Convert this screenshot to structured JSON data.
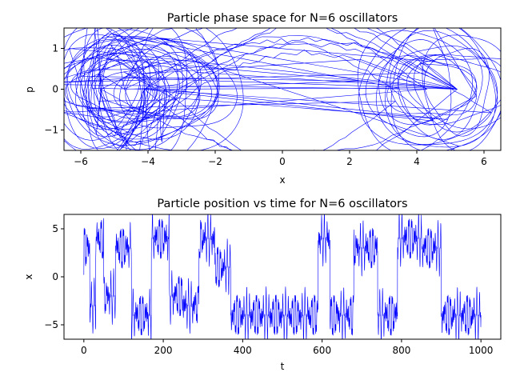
{
  "chart_data": [
    {
      "type": "line",
      "title": "Particle phase space for N=6 oscillators",
      "xlabel": "x",
      "ylabel": "p",
      "xlim": [
        -6.5,
        6.5
      ],
      "ylim": [
        -1.5,
        1.5
      ],
      "xticks": [
        -6,
        -4,
        -2,
        0,
        2,
        4,
        6
      ],
      "yticks": [
        -1,
        0,
        1
      ],
      "xtick_labels": [
        "−6",
        "−4",
        "−2",
        "0",
        "2",
        "4",
        "6"
      ],
      "ytick_labels": [
        "−1",
        "0",
        "1"
      ],
      "grid": false,
      "line_color": "#0000ff",
      "loop_centers_x": [
        -5.4,
        -4.7,
        -4.1,
        -3.5,
        4.3,
        5.2
      ],
      "x_range_visited": [
        -6.5,
        6.5
      ]
    },
    {
      "type": "line",
      "title": "Particle position vs time for N=6 oscillators",
      "xlabel": "t",
      "ylabel": "x",
      "xlim": [
        -50,
        1050
      ],
      "ylim": [
        -6.5,
        6.5
      ],
      "xticks": [
        0,
        200,
        400,
        600,
        800,
        1000
      ],
      "yticks": [
        -5,
        0,
        5
      ],
      "xtick_labels": [
        "0",
        "200",
        "400",
        "600",
        "800",
        "1000"
      ],
      "ytick_labels": [
        "−5",
        "0",
        "5"
      ],
      "grid": false,
      "line_color": "#0000ff",
      "t_range": [
        0,
        1000
      ],
      "x_start": 0.2,
      "x_end": -4.0
    }
  ]
}
